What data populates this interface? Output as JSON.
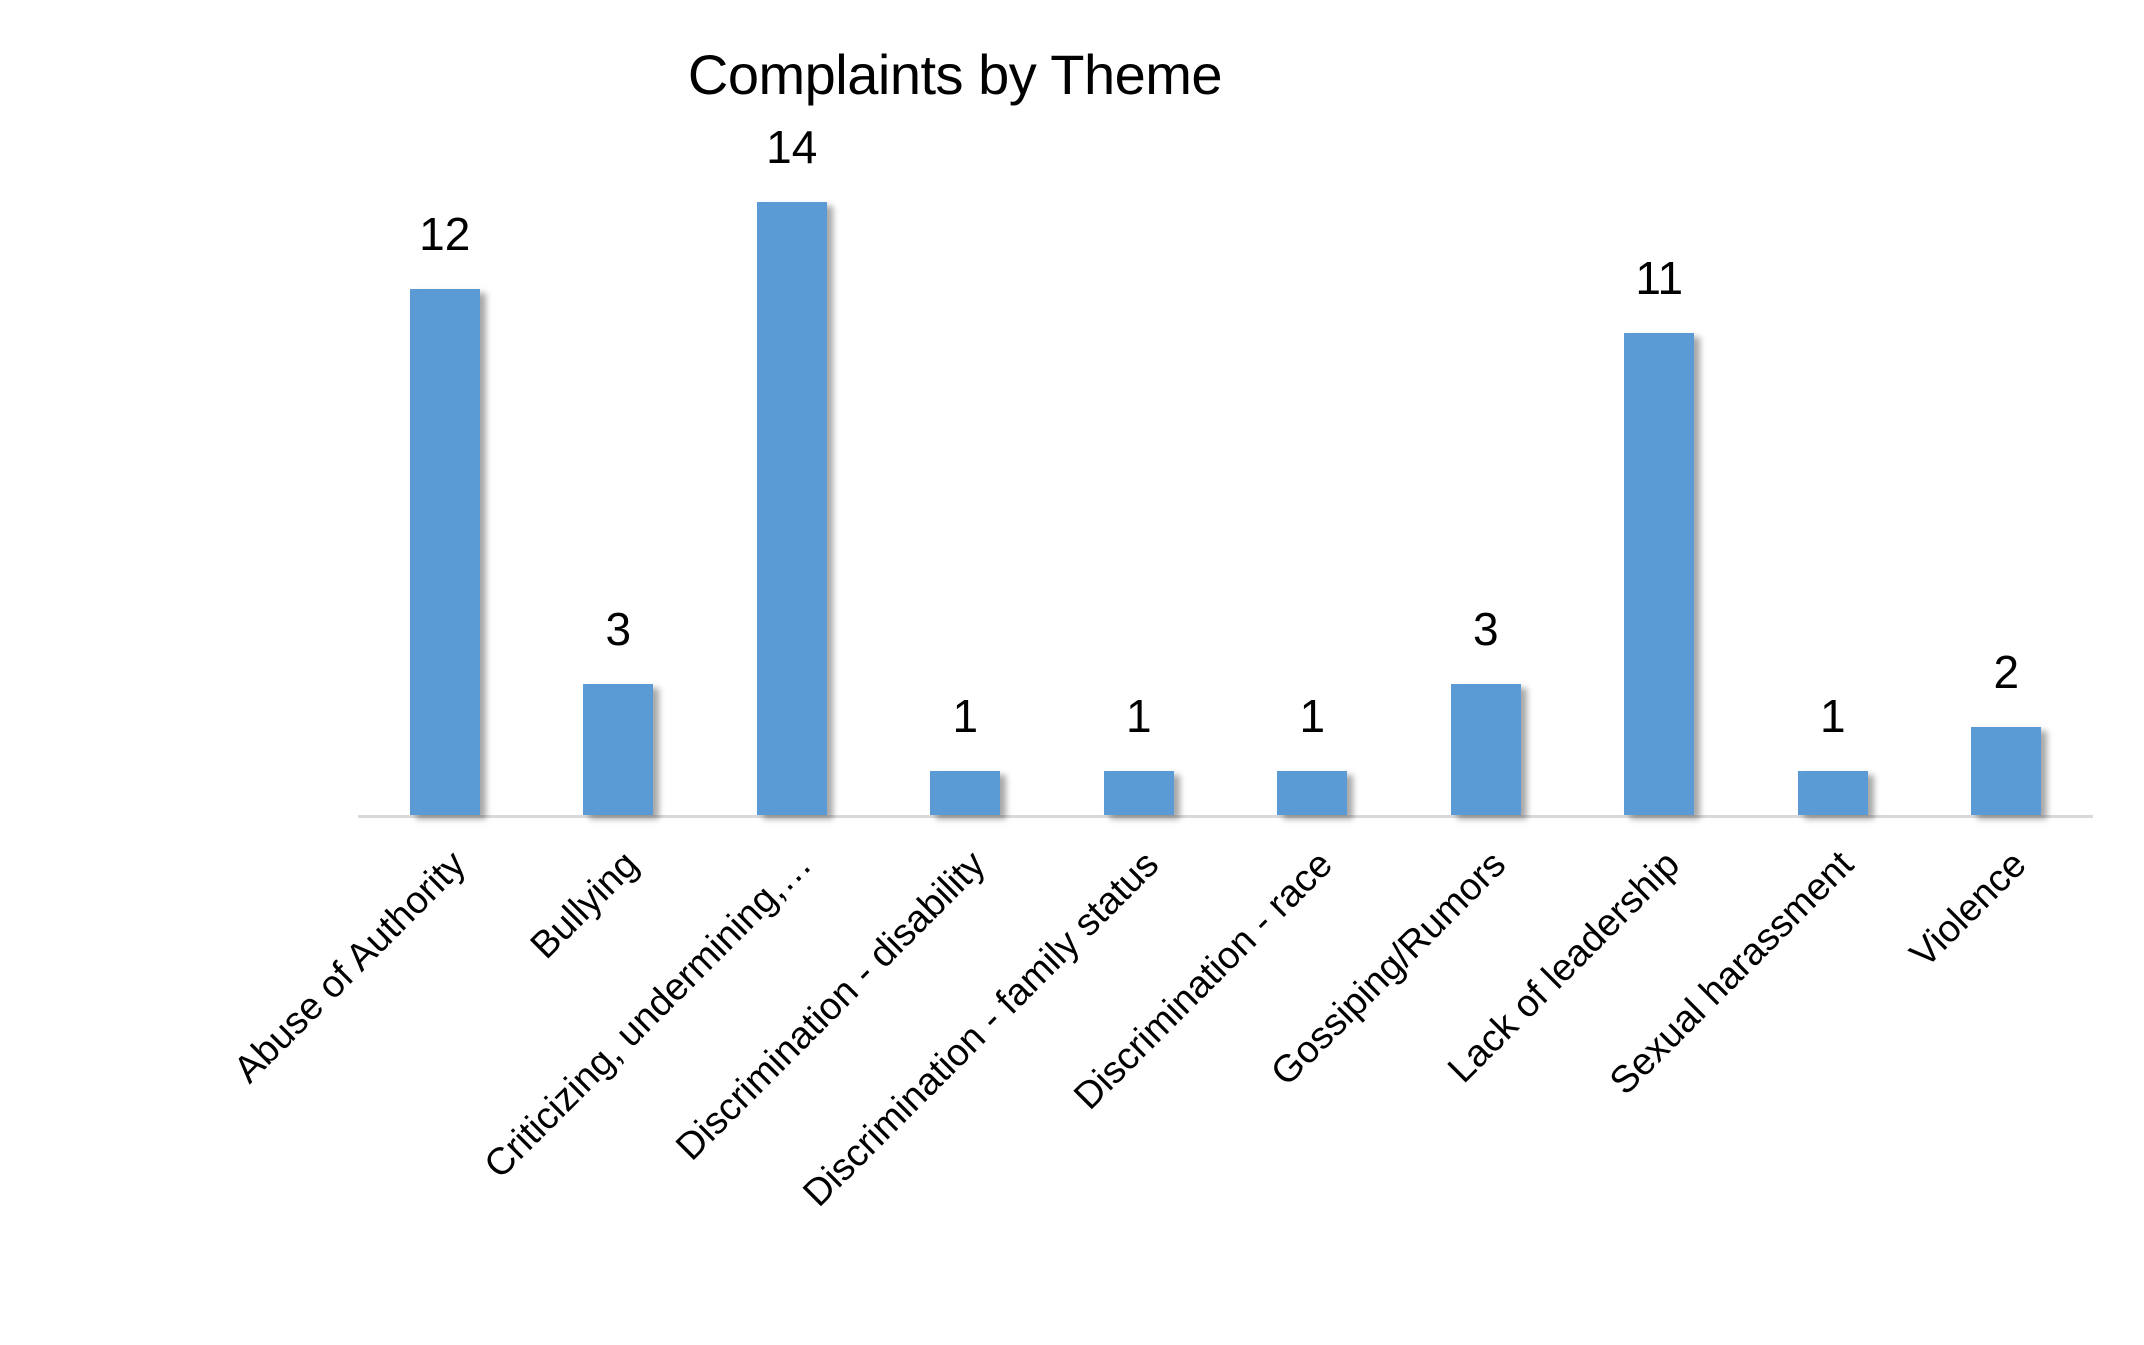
{
  "chart_data": {
    "type": "bar",
    "title": "Complaints by Theme",
    "xlabel": "",
    "ylabel": "",
    "categories": [
      "Abuse of Authority",
      "Bullying",
      "Criticizing, undermining,…",
      "Discrimination - disability",
      "Discrimination - family status",
      "Discrimination - race",
      "Gossiping/Rumors",
      "Lack of leadership",
      "Sexual harassment",
      "Violence"
    ],
    "values": [
      12,
      3,
      14,
      1,
      1,
      1,
      3,
      11,
      1,
      2
    ],
    "data_labels": [
      "12",
      "3",
      "14",
      "1",
      "1",
      "1",
      "3",
      "11",
      "1",
      "2"
    ],
    "ylim": [
      0,
      14
    ],
    "grid": false,
    "legend": "none",
    "y_axis_visible": false,
    "x_tick_rotation": -45,
    "bar_color": "#5B9BD5",
    "axis_color": "#D9D9D9"
  }
}
